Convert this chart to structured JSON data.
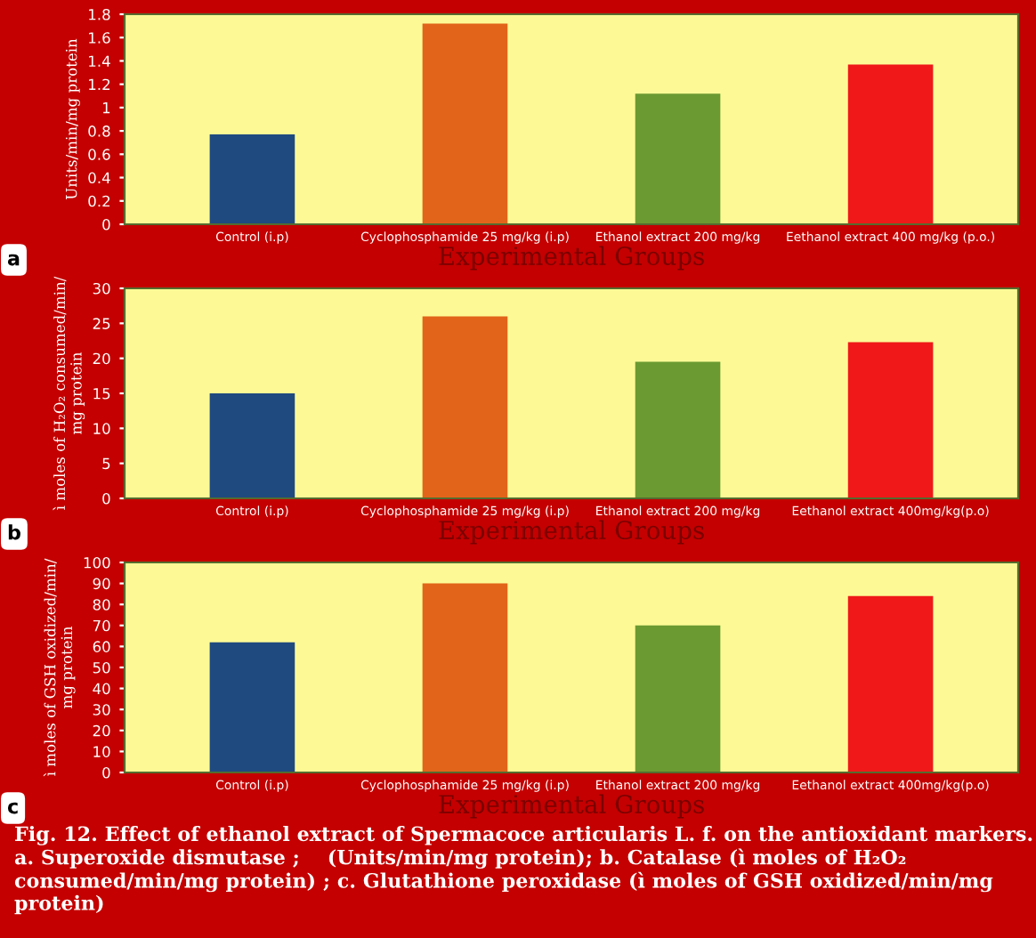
{
  "chart_data": [
    {
      "type": "bar",
      "categories": [
        "Control (i.p)",
        "Cyclophosphamide 25 mg/kg (i.p)",
        "Ethanol extract 200 mg/kg",
        "Eethanol extract 400 mg/kg (p.o.)"
      ],
      "values": [
        0.77,
        1.72,
        1.12,
        1.37
      ],
      "colors": [
        "#1f4a80",
        "#e2641a",
        "#6b9a32",
        "#f01818"
      ],
      "xlabel": "Experimental Groups",
      "ylabel": "Units/min/mg protein",
      "ylim": [
        0,
        1.8
      ],
      "yticks": [
        0,
        0.2,
        0.4,
        0.6,
        0.8,
        1,
        1.2,
        1.4,
        1.6,
        1.8
      ],
      "grid": false,
      "legend": false,
      "annotations": [
        "a"
      ]
    },
    {
      "type": "bar",
      "categories": [
        "Control (i.p)",
        "Cyclophosphamide 25 mg/kg (i.p)",
        "Ethanol extract 200 mg/kg",
        "Eethanol extract 400mg/kg(p.o)"
      ],
      "values": [
        15,
        26,
        19.5,
        22.3
      ],
      "colors": [
        "#1f4a80",
        "#e2641a",
        "#6b9a32",
        "#f01818"
      ],
      "xlabel": "Experimental Groups",
      "ylabel": "ì moles of H₂O₂ consumed/min/\nmg protein",
      "ylim": [
        0,
        30
      ],
      "yticks": [
        0,
        5,
        10,
        15,
        20,
        25,
        30
      ],
      "grid": false,
      "legend": false,
      "annotations": [
        "b"
      ]
    },
    {
      "type": "bar",
      "categories": [
        "Control (i.p)",
        "Cyclophosphamide 25 mg/kg (i.p)",
        "Ethanol extract 200 mg/kg",
        "Eethanol extract 400mg/kg(p.o)"
      ],
      "values": [
        62,
        90,
        70,
        84
      ],
      "colors": [
        "#1f4a80",
        "#e2641a",
        "#6b9a32",
        "#f01818"
      ],
      "xlabel": "Experimental Groups",
      "ylabel": "ì moles of GSH oxidized/min/\nmg protein",
      "ylim": [
        0,
        100
      ],
      "yticks": [
        0,
        10,
        20,
        30,
        40,
        50,
        60,
        70,
        80,
        90,
        100
      ],
      "grid": false,
      "legend": false,
      "annotations": [
        "c",
        "Fig. 12. Effect of ethanol extract of Spermacoce articularis L. f. on the antioxidant markers. a. Superoxide dismutase ;    (Units/min/mg protein); b. Catalase (ì moles of H₂O₂ consumed/min/mg protein) ; c. Glutathione peroxidase (ì moles of GSH oxidized/min/mg protein)"
      ]
    }
  ]
}
